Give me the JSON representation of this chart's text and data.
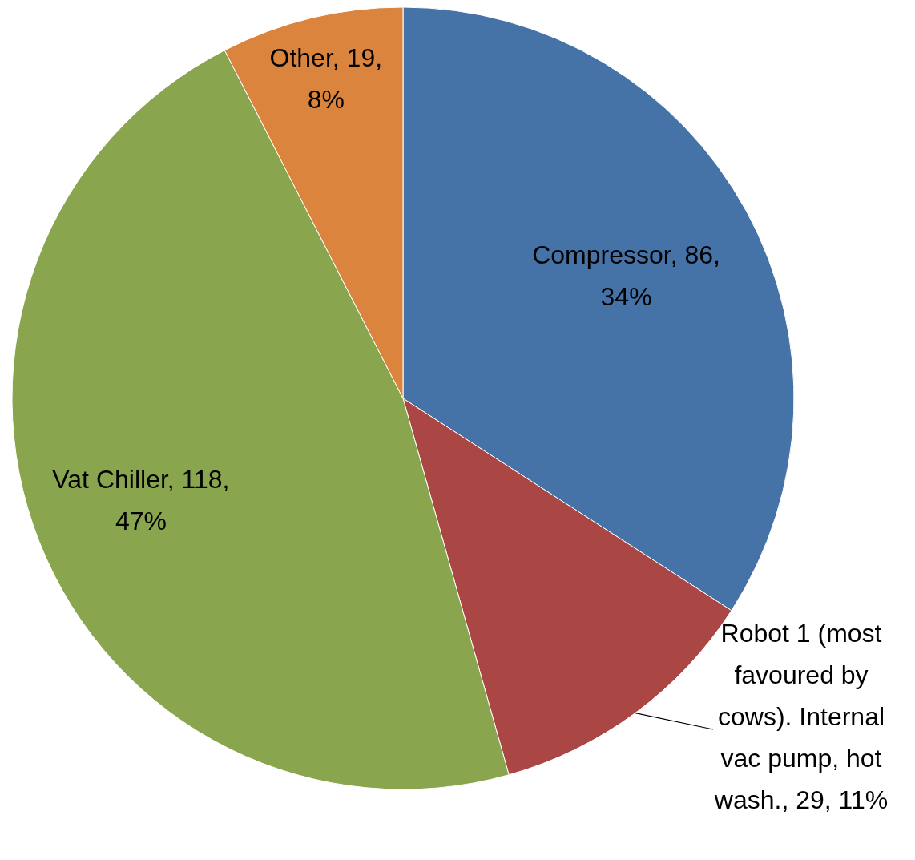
{
  "chart_data": {
    "type": "pie",
    "categories": [
      "Compressor",
      "Robot 1 (most favoured by cows).  Internal vac pump, hot wash.",
      "Vat Chiller",
      "Other"
    ],
    "values": [
      86,
      29,
      118,
      19
    ],
    "colors": [
      "#4572a7",
      "#aa4643",
      "#89a54e",
      "#db843d"
    ],
    "value_labels": [
      "86, 34%",
      "29, 11%",
      "118, 47%",
      "19, 8%"
    ]
  }
}
